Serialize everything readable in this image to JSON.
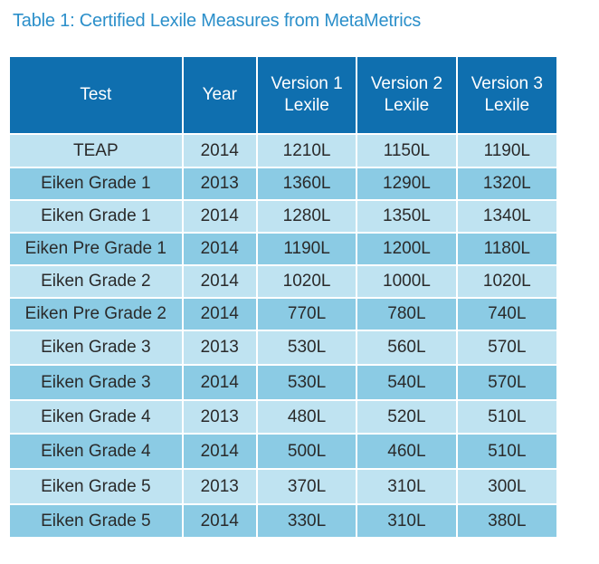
{
  "caption": "Table 1: Certified Lexile Measures from MetaMetrics",
  "colors": {
    "caption": "#2b8fca",
    "header_bg": "#0f6faf",
    "row_light": "#bfe3f1",
    "row_dark": "#8bcbe4"
  },
  "table": {
    "headers": [
      {
        "line1": "Test",
        "line2": ""
      },
      {
        "line1": "Year",
        "line2": ""
      },
      {
        "line1": "Version 1",
        "line2": "Lexile"
      },
      {
        "line1": "Version 2",
        "line2": "Lexile"
      },
      {
        "line1": "Version 3",
        "line2": "Lexile"
      }
    ],
    "rows": [
      [
        "TEAP",
        "2014",
        "1210L",
        "1150L",
        "1190L"
      ],
      [
        "Eiken Grade 1",
        "2013",
        "1360L",
        "1290L",
        "1320L"
      ],
      [
        "Eiken Grade 1",
        "2014",
        "1280L",
        "1350L",
        "1340L"
      ],
      [
        "Eiken Pre Grade 1",
        "2014",
        "1190L",
        "1200L",
        "1180L"
      ],
      [
        "Eiken Grade 2",
        "2014",
        "1020L",
        "1000L",
        "1020L"
      ],
      [
        "Eiken Pre Grade 2",
        "2014",
        "770L",
        "780L",
        "740L"
      ],
      [
        "Eiken Grade 3",
        "2013",
        "530L",
        "560L",
        "570L"
      ],
      [
        "Eiken Grade 3",
        "2014",
        "530L",
        "540L",
        "570L"
      ],
      [
        "Eiken Grade 4",
        "2013",
        "480L",
        "520L",
        "510L"
      ],
      [
        "Eiken Grade 4",
        "2014",
        "500L",
        "460L",
        "510L"
      ],
      [
        "Eiken Grade 5",
        "2013",
        "370L",
        "310L",
        "300L"
      ],
      [
        "Eiken Grade 5",
        "2014",
        "330L",
        "310L",
        "380L"
      ]
    ]
  }
}
